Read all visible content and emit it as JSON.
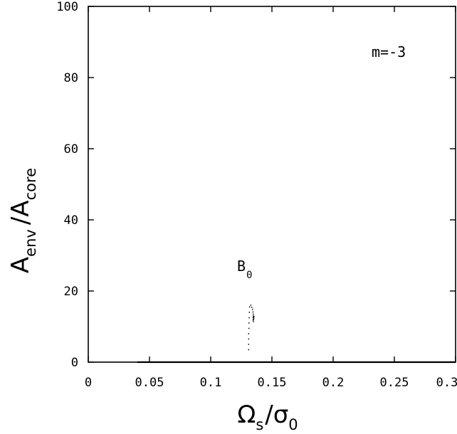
{
  "chart_data": {
    "type": "scatter",
    "title": "",
    "xlabel": {
      "main": "Ω",
      "sub": "s",
      "slash": "/",
      "main2": "σ",
      "sub2": "0"
    },
    "ylabel": {
      "main": "A",
      "sub": "env",
      "slash": "/",
      "main2": "A",
      "sub2": "core"
    },
    "xlim": [
      0,
      0.3
    ],
    "ylim": [
      0,
      100
    ],
    "x_ticks": [
      0,
      0.05,
      0.1,
      0.15,
      0.2,
      0.25,
      0.3
    ],
    "x_tick_labels": [
      "0",
      "0.05",
      "0.1",
      "0.15",
      "0.2",
      "0.25",
      "0.3"
    ],
    "y_ticks": [
      0,
      20,
      40,
      60,
      80,
      100
    ],
    "y_tick_labels": [
      "0",
      "20",
      "40",
      "60",
      "80",
      "100"
    ],
    "grid": false,
    "legend": "none",
    "annotations": [
      {
        "text": "m=-3"
      },
      {
        "main": "B",
        "sub": "0",
        "x": 0.131,
        "y": 22.5
      }
    ],
    "series": [
      {
        "values": [
          {
            "x": 0.131,
            "y": 3.5
          },
          {
            "x": 0.131,
            "y": 5.0
          },
          {
            "x": 0.131,
            "y": 6.5
          },
          {
            "x": 0.131,
            "y": 8.0
          },
          {
            "x": 0.1312,
            "y": 9.5
          },
          {
            "x": 0.1313,
            "y": 11.0
          },
          {
            "x": 0.1314,
            "y": 12.5
          },
          {
            "x": 0.1316,
            "y": 14.0
          },
          {
            "x": 0.1318,
            "y": 15.5
          },
          {
            "x": 0.1328,
            "y": 16.0
          },
          {
            "x": 0.1336,
            "y": 15.4
          },
          {
            "x": 0.1342,
            "y": 14.8
          },
          {
            "x": 0.1346,
            "y": 14.1
          },
          {
            "x": 0.1348,
            "y": 13.5
          },
          {
            "x": 0.1349,
            "y": 13.0
          },
          {
            "x": 0.135,
            "y": 12.5
          },
          {
            "x": 0.1348,
            "y": 12.0
          },
          {
            "x": 0.1352,
            "y": 12.2
          },
          {
            "x": 0.1346,
            "y": 12.6
          },
          {
            "x": 0.1354,
            "y": 12.8
          },
          {
            "x": 0.135,
            "y": 11.4
          },
          {
            "x": 0.1347,
            "y": 11.8
          }
        ]
      }
    ],
    "baseline": {
      "x0": 0.04,
      "x1": 0.3,
      "y": 0
    }
  }
}
